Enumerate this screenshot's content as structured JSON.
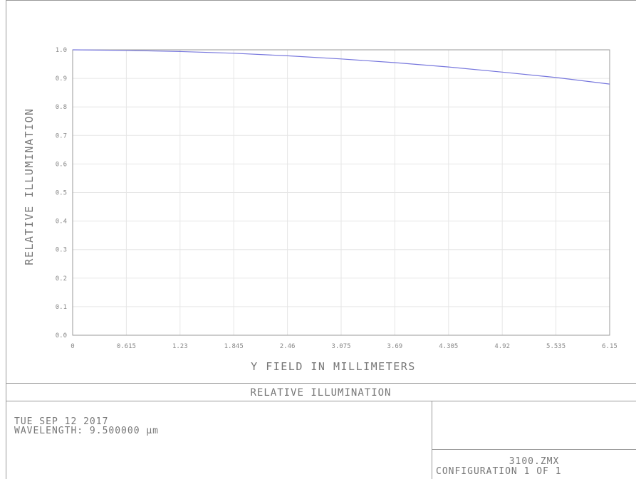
{
  "chart_data": {
    "type": "line",
    "xlabel": "Y FIELD IN MILLIMETERS",
    "ylabel": "RELATIVE ILLUMINATION",
    "xlim": [
      0,
      6.15
    ],
    "ylim": [
      0.0,
      1.0
    ],
    "x_ticks": [
      "0",
      "0.615",
      "1.23",
      "1.845",
      "2.46",
      "3.075",
      "3.69",
      "4.305",
      "4.92",
      "5.535",
      "6.15"
    ],
    "y_ticks": [
      "0.0",
      "0.1",
      "0.2",
      "0.3",
      "0.4",
      "0.5",
      "0.6",
      "0.7",
      "0.8",
      "0.9",
      "1.0"
    ],
    "grid": true,
    "series": [
      {
        "color": "#7777dd",
        "x": [
          0,
          0.615,
          1.23,
          1.845,
          2.46,
          3.075,
          3.69,
          4.305,
          4.92,
          5.535,
          6.15
        ],
        "y": [
          1.0,
          0.998,
          0.994,
          0.988,
          0.979,
          0.968,
          0.955,
          0.94,
          0.922,
          0.903,
          0.88
        ]
      }
    ]
  },
  "info": {
    "title": "RELATIVE ILLUMINATION",
    "date": "TUE SEP 12 2017",
    "wavelength": "WAVELENGTH: 9.500000 µm",
    "file": "3100.ZMX",
    "configuration": "CONFIGURATION 1 OF 1"
  }
}
